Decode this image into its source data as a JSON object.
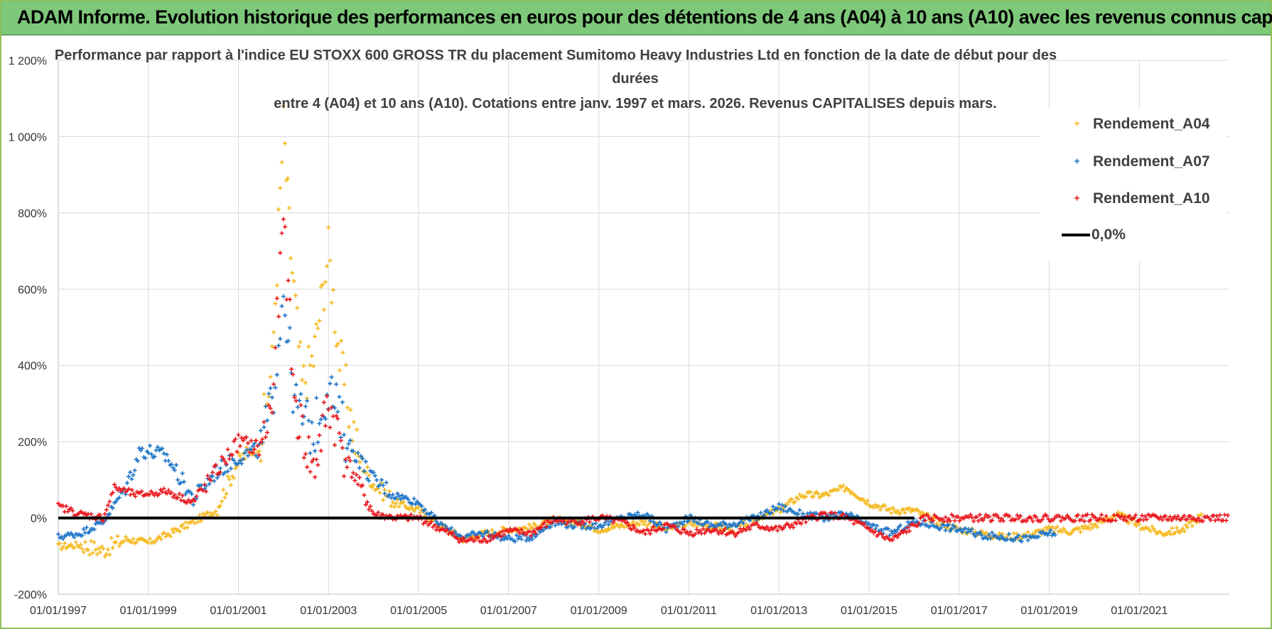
{
  "banner": {
    "title": "ADAM Informe. Evolution historique des performances en euros pour des détentions de 4 ans (A04) à 10 ans (A10) avec les revenus connus capitalisés"
  },
  "chart_data": {
    "type": "scatter",
    "title_lines": [
      "Performance par rapport à l'indice EU STOXX 600 GROSS TR  du placement Sumitomo Heavy Industries Ltd en fonction de la date de début pour des",
      "durées",
      "entre 4 (A04) et 10 ans (A10). Cotations entre janv. 1997 et mars. 2026. Revenus CAPITALISES depuis mars."
    ],
    "xlabel": "",
    "ylabel": "",
    "x_ticks": [
      "01/01/1997",
      "01/01/1999",
      "01/01/2001",
      "01/01/2003",
      "01/01/2005",
      "01/01/2007",
      "01/01/2009",
      "01/01/2011",
      "01/01/2013",
      "01/01/2015",
      "01/01/2017",
      "01/01/2019",
      "01/01/2021"
    ],
    "x_range": [
      "1997-01-01",
      "2023-01-01"
    ],
    "y_ticks": [
      "-200%",
      "0%",
      "200%",
      "400%",
      "600%",
      "800%",
      "1 000%",
      "1 200%"
    ],
    "y_range": [
      -200,
      1200
    ],
    "grid": true,
    "legend_position": "top-right",
    "colors": {
      "A04": "#f5b81c",
      "A07": "#1a73c6",
      "A10": "#e8141a",
      "zero": "#000000"
    },
    "series": [
      {
        "name": "Rendement_A04",
        "color": "#f5b81c",
        "points": [
          [
            "1997-01-01",
            -75
          ],
          [
            "1997-07-01",
            -70
          ],
          [
            "1998-01-01",
            -85
          ],
          [
            "1998-07-01",
            -55
          ],
          [
            "1999-01-01",
            -65
          ],
          [
            "1999-07-01",
            -40
          ],
          [
            "2000-01-01",
            -10
          ],
          [
            "2000-07-01",
            20
          ],
          [
            "2001-01-01",
            150
          ],
          [
            "2001-07-01",
            200
          ],
          [
            "2001-10-01",
            400
          ],
          [
            "2002-01-01",
            1030
          ],
          [
            "2002-03-01",
            700
          ],
          [
            "2002-06-01",
            350
          ],
          [
            "2002-09-01",
            420
          ],
          [
            "2003-01-01",
            700
          ],
          [
            "2003-04-01",
            420
          ],
          [
            "2003-09-01",
            160
          ],
          [
            "2004-01-01",
            90
          ],
          [
            "2004-07-01",
            40
          ],
          [
            "2005-01-01",
            20
          ],
          [
            "2005-07-01",
            -20
          ],
          [
            "2006-01-01",
            -55
          ],
          [
            "2006-07-01",
            -40
          ],
          [
            "2007-01-01",
            -30
          ],
          [
            "2007-07-01",
            -25
          ],
          [
            "2008-01-01",
            -5
          ],
          [
            "2008-07-01",
            -10
          ],
          [
            "2009-01-01",
            -30
          ],
          [
            "2009-07-01",
            -20
          ],
          [
            "2010-01-01",
            -10
          ],
          [
            "2010-07-01",
            -30
          ],
          [
            "2011-01-01",
            -15
          ],
          [
            "2011-07-01",
            -20
          ],
          [
            "2012-01-01",
            -30
          ],
          [
            "2012-07-01",
            0
          ],
          [
            "2013-01-01",
            20
          ],
          [
            "2013-07-01",
            60
          ],
          [
            "2014-01-01",
            60
          ],
          [
            "2014-07-01",
            80
          ],
          [
            "2015-01-01",
            40
          ],
          [
            "2015-07-01",
            20
          ],
          [
            "2016-01-01",
            20
          ],
          [
            "2016-07-01",
            -10
          ],
          [
            "2017-01-01",
            -30
          ],
          [
            "2017-07-01",
            -40
          ],
          [
            "2018-01-01",
            -50
          ],
          [
            "2018-07-01",
            -45
          ],
          [
            "2019-01-01",
            -30
          ],
          [
            "2019-07-01",
            -35
          ],
          [
            "2020-01-01",
            -20
          ],
          [
            "2020-07-01",
            10
          ],
          [
            "2021-01-01",
            -20
          ],
          [
            "2021-07-01",
            -40
          ],
          [
            "2022-01-01",
            -30
          ],
          [
            "2022-06-01",
            10
          ]
        ]
      },
      {
        "name": "Rendement_A07",
        "color": "#1a73c6",
        "points": [
          [
            "1997-01-01",
            -50
          ],
          [
            "1997-07-01",
            -40
          ],
          [
            "1998-01-01",
            -10
          ],
          [
            "1998-07-01",
            80
          ],
          [
            "1998-11-01",
            180
          ],
          [
            "1999-06-01",
            160
          ],
          [
            "2000-01-01",
            50
          ],
          [
            "2000-07-01",
            120
          ],
          [
            "2001-01-01",
            160
          ],
          [
            "2001-07-01",
            180
          ],
          [
            "2001-10-01",
            300
          ],
          [
            "2002-01-01",
            600
          ],
          [
            "2002-04-01",
            300
          ],
          [
            "2002-09-01",
            220
          ],
          [
            "2003-01-01",
            350
          ],
          [
            "2003-06-01",
            200
          ],
          [
            "2004-01-01",
            100
          ],
          [
            "2004-07-01",
            60
          ],
          [
            "2005-01-01",
            40
          ],
          [
            "2005-07-01",
            -20
          ],
          [
            "2006-01-01",
            -50
          ],
          [
            "2006-07-01",
            -40
          ],
          [
            "2007-01-01",
            -55
          ],
          [
            "2007-07-01",
            -50
          ],
          [
            "2008-01-01",
            -10
          ],
          [
            "2008-07-01",
            -20
          ],
          [
            "2009-01-01",
            -20
          ],
          [
            "2009-07-01",
            0
          ],
          [
            "2010-01-01",
            10
          ],
          [
            "2010-07-01",
            -30
          ],
          [
            "2011-01-01",
            0
          ],
          [
            "2011-07-01",
            -20
          ],
          [
            "2012-01-01",
            -15
          ],
          [
            "2012-07-01",
            0
          ],
          [
            "2013-01-01",
            30
          ],
          [
            "2013-07-01",
            10
          ],
          [
            "2014-01-01",
            0
          ],
          [
            "2014-07-01",
            10
          ],
          [
            "2015-01-01",
            -20
          ],
          [
            "2015-07-01",
            -40
          ],
          [
            "2016-01-01",
            -10
          ],
          [
            "2016-07-01",
            -20
          ],
          [
            "2017-01-01",
            -30
          ],
          [
            "2017-07-01",
            -45
          ],
          [
            "2018-01-01",
            -50
          ],
          [
            "2018-07-01",
            -55
          ],
          [
            "2019-01-01",
            -40
          ],
          [
            "2019-03-01",
            -40
          ]
        ]
      },
      {
        "name": "Rendement_A10",
        "color": "#e8141a",
        "points": [
          [
            "1997-01-01",
            30
          ],
          [
            "1997-07-01",
            10
          ],
          [
            "1998-01-01",
            0
          ],
          [
            "1998-04-01",
            80
          ],
          [
            "1998-10-01",
            60
          ],
          [
            "1999-06-01",
            70
          ],
          [
            "2000-01-01",
            40
          ],
          [
            "2000-07-01",
            120
          ],
          [
            "2001-01-01",
            200
          ],
          [
            "2001-07-01",
            180
          ],
          [
            "2001-10-01",
            300
          ],
          [
            "2002-01-01",
            780
          ],
          [
            "2002-04-01",
            300
          ],
          [
            "2002-09-01",
            120
          ],
          [
            "2003-01-01",
            300
          ],
          [
            "2003-06-01",
            150
          ],
          [
            "2004-01-01",
            10
          ],
          [
            "2004-07-01",
            0
          ],
          [
            "2005-01-01",
            0
          ],
          [
            "2005-07-01",
            -30
          ],
          [
            "2006-01-01",
            -60
          ],
          [
            "2006-07-01",
            -55
          ],
          [
            "2007-01-01",
            -35
          ],
          [
            "2007-07-01",
            -40
          ],
          [
            "2008-01-01",
            -5
          ],
          [
            "2008-07-01",
            -10
          ],
          [
            "2009-01-01",
            0
          ],
          [
            "2009-07-01",
            -10
          ],
          [
            "2010-01-01",
            -40
          ],
          [
            "2010-07-01",
            -20
          ],
          [
            "2011-01-01",
            -40
          ],
          [
            "2011-07-01",
            -30
          ],
          [
            "2012-01-01",
            -40
          ],
          [
            "2012-07-01",
            -20
          ],
          [
            "2013-01-01",
            -30
          ],
          [
            "2013-07-01",
            -10
          ],
          [
            "2014-01-01",
            10
          ],
          [
            "2014-07-01",
            0
          ],
          [
            "2015-01-01",
            -30
          ],
          [
            "2015-07-01",
            -60
          ],
          [
            "2016-01-01",
            -20
          ],
          [
            "2016-04-01",
            0
          ],
          [
            "2023-01-01",
            0
          ]
        ]
      },
      {
        "name": "0,0%",
        "color": "#000000",
        "points": [
          [
            "1997-01-01",
            0
          ],
          [
            "2016-01-01",
            0
          ]
        ]
      }
    ]
  }
}
